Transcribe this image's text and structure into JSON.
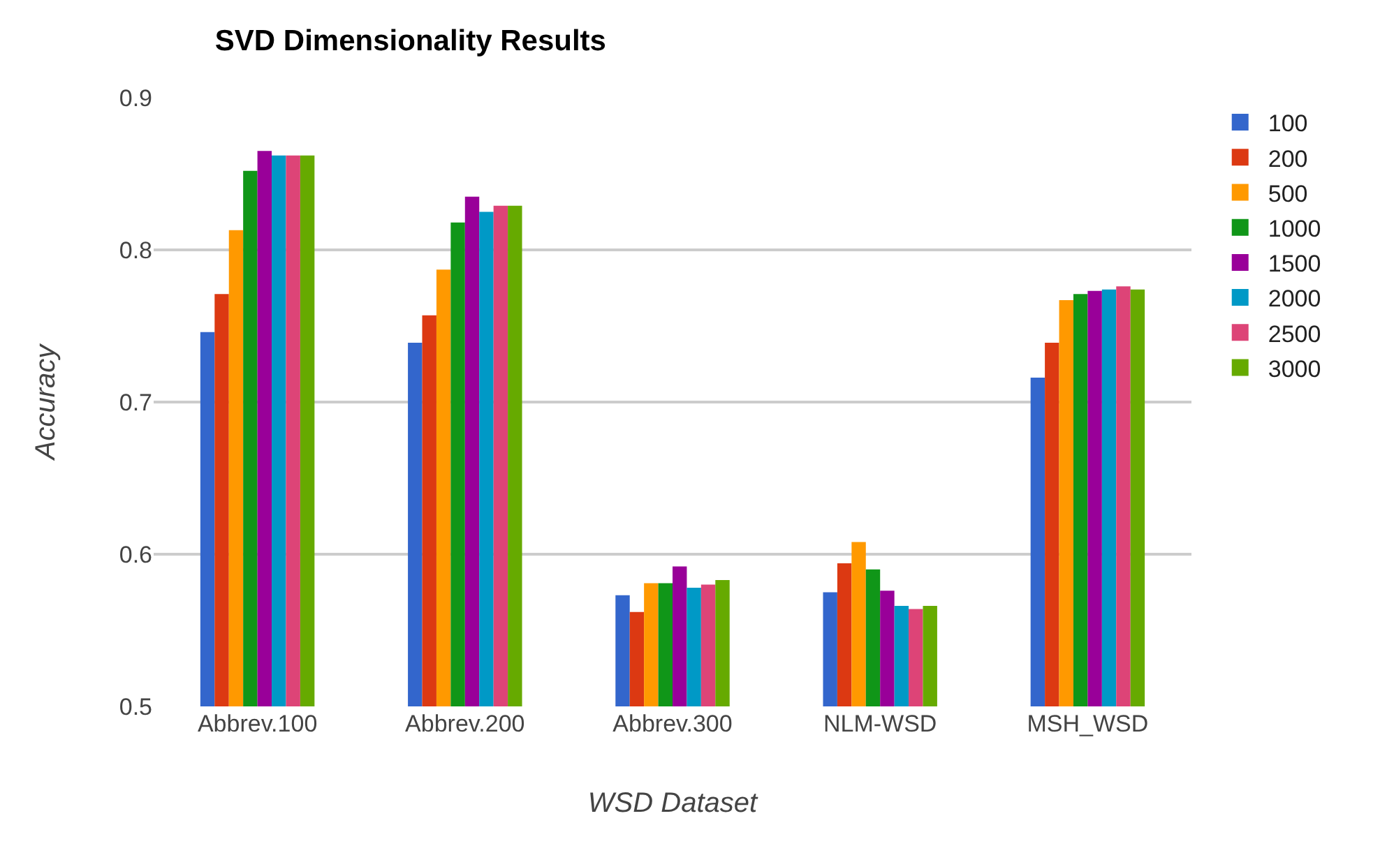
{
  "chart_data": {
    "type": "bar",
    "title": "SVD Dimensionality Results",
    "xlabel": "WSD Dataset",
    "ylabel": "Accuracy",
    "categories": [
      "Abbrev.100",
      "Abbrev.200",
      "Abbrev.300",
      "NLM-WSD",
      "MSH_WSD"
    ],
    "series": [
      {
        "name": "100",
        "color": "#3366cc",
        "values": [
          0.746,
          0.739,
          0.573,
          0.575,
          0.716
        ]
      },
      {
        "name": "200",
        "color": "#dc3912",
        "values": [
          0.771,
          0.757,
          0.562,
          0.594,
          0.739
        ]
      },
      {
        "name": "500",
        "color": "#ff9900",
        "values": [
          0.813,
          0.787,
          0.581,
          0.608,
          0.767
        ]
      },
      {
        "name": "1000",
        "color": "#109618",
        "values": [
          0.852,
          0.818,
          0.581,
          0.59,
          0.771
        ]
      },
      {
        "name": "1500",
        "color": "#990099",
        "values": [
          0.865,
          0.835,
          0.592,
          0.576,
          0.773
        ]
      },
      {
        "name": "2000",
        "color": "#0099c6",
        "values": [
          0.862,
          0.825,
          0.578,
          0.566,
          0.774
        ]
      },
      {
        "name": "2500",
        "color": "#dd4477",
        "values": [
          0.862,
          0.829,
          0.58,
          0.564,
          0.776
        ]
      },
      {
        "name": "3000",
        "color": "#66aa00",
        "values": [
          0.862,
          0.829,
          0.583,
          0.566,
          0.774
        ]
      }
    ],
    "ylim": [
      0.5,
      0.9
    ],
    "yticks": [
      0.5,
      0.6,
      0.7,
      0.8,
      0.9
    ],
    "grid": "y",
    "legend": "top right"
  }
}
